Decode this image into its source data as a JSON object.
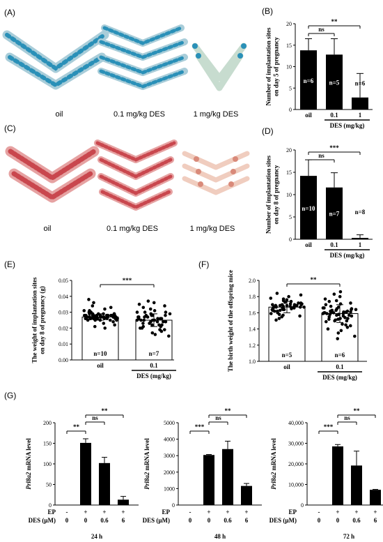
{
  "photos": [
    {
      "letter": "(A)",
      "stain": "blue",
      "labels": [
        "oil",
        "0.1 mg/kg DES",
        "1 mg/kg DES"
      ]
    },
    {
      "letter": "(C)",
      "stain": "red",
      "labels": [
        "oil",
        "0.1 mg/kg DES",
        "1 mg/kg DES"
      ]
    }
  ],
  "colors": {
    "bar_fill": "#000000",
    "blue_stain": "#2a90b8",
    "blue_tissue": "#a9cdd9",
    "red_stain": "#c9474e",
    "red_tissue": "#e6a2a2",
    "pale_tissue": "#f0cdbf",
    "pale_stain": "#d98a7a"
  },
  "chart_data": [
    {
      "id": "B",
      "letter": "(B)",
      "type": "bar",
      "ylabel": [
        "Number of implantation sites",
        "on day 5 of pregnancy"
      ],
      "ylim": [
        0,
        20
      ],
      "yticks": [
        "0",
        "5",
        "10",
        "15",
        "20"
      ],
      "ytick_values": [
        0,
        5,
        10,
        15,
        20
      ],
      "categories": [
        "oil",
        "0.1",
        "1"
      ],
      "values": [
        13.8,
        12.8,
        2.8
      ],
      "errors": [
        2.7,
        3.7,
        5.6
      ],
      "n_labels": [
        "n=6",
        "n=5",
        "n=6"
      ],
      "group_label": "DES (mg/kg)",
      "significance": [
        {
          "from": 0,
          "to": 1,
          "label": "ns"
        },
        {
          "from": 0,
          "to": 2,
          "label": "**"
        }
      ]
    },
    {
      "id": "D",
      "letter": "(D)",
      "type": "bar",
      "ylabel": [
        "Number of implantation sites",
        "on day 8 of pregnancy"
      ],
      "ylim": [
        0,
        20
      ],
      "yticks": [
        "0",
        "5",
        "10",
        "15",
        "20"
      ],
      "ytick_values": [
        0,
        5,
        10,
        15,
        20
      ],
      "categories": [
        "oil",
        "0.1",
        "1"
      ],
      "values": [
        14.2,
        11.6,
        0.3
      ],
      "errors": [
        3.6,
        3.3,
        0.7
      ],
      "n_labels": [
        "n=10",
        "n=7",
        "n=8"
      ],
      "group_label": "DES (mg/kg)",
      "significance": [
        {
          "from": 0,
          "to": 1,
          "label": "ns"
        },
        {
          "from": 0,
          "to": 2,
          "label": "***"
        }
      ]
    },
    {
      "id": "E",
      "letter": "(E)",
      "type": "scatter",
      "ylabel": [
        "The weight of implantation sites",
        "on day 8 of pregnancy (g)"
      ],
      "ylim": [
        0,
        0.05
      ],
      "yticks": [
        "0.00",
        "0.01",
        "0.02",
        "0.03",
        "0.04",
        "0.05"
      ],
      "ytick_values": [
        0,
        0.01,
        0.02,
        0.03,
        0.04,
        0.05
      ],
      "categories": [
        "oil",
        "0.1"
      ],
      "values": [
        0.027,
        0.025
      ],
      "errors": [
        0.002,
        0.004
      ],
      "points": [
        [
          0.027,
          0.028,
          0.026,
          0.027,
          0.029,
          0.025,
          0.027,
          0.028,
          0.026,
          0.03,
          0.027,
          0.026,
          0.028,
          0.027,
          0.025,
          0.029,
          0.027,
          0.028,
          0.026,
          0.027,
          0.031,
          0.024,
          0.027,
          0.028,
          0.026,
          0.029,
          0.027,
          0.025,
          0.028,
          0.027,
          0.026,
          0.03,
          0.027,
          0.028,
          0.026,
          0.027,
          0.032,
          0.023,
          0.027,
          0.028,
          0.026,
          0.029,
          0.027,
          0.025,
          0.028,
          0.027,
          0.026,
          0.031,
          0.027,
          0.028,
          0.026,
          0.027,
          0.033,
          0.022,
          0.027,
          0.028,
          0.026,
          0.029,
          0.027,
          0.025,
          0.034,
          0.036,
          0.038,
          0.021,
          0.02,
          0.028,
          0.026,
          0.029,
          0.027,
          0.028
        ],
        [
          0.025,
          0.028,
          0.022,
          0.026,
          0.03,
          0.02,
          0.024,
          0.027,
          0.031,
          0.019,
          0.025,
          0.029,
          0.023,
          0.026,
          0.033,
          0.018,
          0.024,
          0.028,
          0.021,
          0.027,
          0.035,
          0.016,
          0.025,
          0.03,
          0.022,
          0.026,
          0.036,
          0.017,
          0.024,
          0.029,
          0.023,
          0.027,
          0.034,
          0.019,
          0.025,
          0.028,
          0.021,
          0.026,
          0.037,
          0.015,
          0.024,
          0.03,
          0.022,
          0.027,
          0.032,
          0.02,
          0.025,
          0.028
        ]
      ],
      "n_labels": [
        "n=10",
        "n=7"
      ],
      "group_label": "DES (mg/kg)",
      "significance": [
        {
          "from": 0,
          "to": 1,
          "label": "***"
        }
      ]
    },
    {
      "id": "F",
      "letter": "(F)",
      "type": "scatter",
      "ylabel": [
        "The birth weight of the offspring mice"
      ],
      "ylim": [
        1.0,
        2.0
      ],
      "yticks": [
        "1.0",
        "1.2",
        "1.4",
        "1.6",
        "1.8",
        "2.0"
      ],
      "ytick_values": [
        1.0,
        1.2,
        1.4,
        1.6,
        1.8,
        2.0
      ],
      "categories": [
        "oil",
        "0.1"
      ],
      "values": [
        1.67,
        1.59
      ],
      "errors": [
        0.07,
        0.11
      ],
      "points": [
        [
          1.67,
          1.7,
          1.64,
          1.68,
          1.72,
          1.62,
          1.66,
          1.69,
          1.74,
          1.6,
          1.67,
          1.71,
          1.65,
          1.68,
          1.76,
          1.58,
          1.66,
          1.7,
          1.63,
          1.69,
          1.78,
          1.56,
          1.67,
          1.72,
          1.64,
          1.68,
          1.8,
          1.55,
          1.66,
          1.71,
          1.63,
          1.69,
          1.75,
          1.59,
          1.67,
          1.7,
          1.65,
          1.68,
          1.82,
          1.53,
          1.66,
          1.73,
          1.64,
          1.69,
          1.77,
          1.57,
          1.84,
          1.51,
          1.67,
          1.7,
          1.62,
          1.68
        ],
        [
          1.59,
          1.64,
          1.53,
          1.6,
          1.68,
          1.49,
          1.57,
          1.62,
          1.71,
          1.45,
          1.58,
          1.65,
          1.52,
          1.61,
          1.74,
          1.42,
          1.56,
          1.63,
          1.5,
          1.6,
          1.77,
          1.38,
          1.58,
          1.66,
          1.54,
          1.61,
          1.8,
          1.35,
          1.57,
          1.64,
          1.51,
          1.6,
          1.72,
          1.44,
          1.59,
          1.67,
          1.55,
          1.62,
          1.83,
          1.31,
          1.56,
          1.65,
          1.52,
          1.6,
          1.75,
          1.4,
          1.86,
          1.28,
          1.58,
          1.63,
          1.5,
          1.61,
          1.7,
          1.46,
          1.59,
          1.66,
          1.53,
          1.6
        ]
      ],
      "n_labels": [
        "n=5",
        "n=6"
      ],
      "group_label": "DES (mg/kg)",
      "significance": [
        {
          "from": 0,
          "to": 1,
          "label": "**"
        }
      ]
    }
  ],
  "panel_g": {
    "letter": "(G)",
    "row_labels": [
      "EP",
      "DES (μM)"
    ],
    "ep_marks": [
      "-",
      "+",
      "+",
      "+"
    ],
    "des_marks": [
      "0",
      "0",
      "0.6",
      "6"
    ],
    "ylabel_gene": "Prl8a2",
    "ylabel_rest": " mRNA level",
    "charts": [
      {
        "type": "bar",
        "title": "24 h",
        "ylim": [
          0,
          200
        ],
        "yticks": [
          "0",
          "50",
          "100",
          "150",
          "200"
        ],
        "ytick_values": [
          0,
          50,
          100,
          150,
          200
        ],
        "values": [
          0,
          151,
          102,
          13
        ],
        "errors": [
          0,
          10,
          14,
          8
        ],
        "significance": [
          {
            "from": 0,
            "to": 1,
            "label": "**"
          },
          {
            "from": 1,
            "to": 2,
            "label": "ns"
          },
          {
            "from": 1,
            "to": 3,
            "label": "**"
          }
        ]
      },
      {
        "type": "bar",
        "title": "48 h",
        "ylim": [
          0,
          5000
        ],
        "yticks": [
          "0",
          "1000",
          "2000",
          "3000",
          "4000",
          "5000"
        ],
        "ytick_values": [
          0,
          1000,
          2000,
          3000,
          4000,
          5000
        ],
        "values": [
          0,
          3040,
          3400,
          1160
        ],
        "errors": [
          0,
          30,
          480,
          150
        ],
        "significance": [
          {
            "from": 0,
            "to": 1,
            "label": "***"
          },
          {
            "from": 1,
            "to": 2,
            "label": "ns"
          },
          {
            "from": 1,
            "to": 3,
            "label": "**"
          }
        ]
      },
      {
        "type": "bar",
        "title": "72 h",
        "ylim": [
          0,
          40000
        ],
        "yticks": [
          "0",
          "10,000",
          "20,000",
          "30,000",
          "40,000"
        ],
        "ytick_values": [
          0,
          10000,
          20000,
          30000,
          40000
        ],
        "values": [
          0,
          28500,
          19200,
          7400
        ],
        "errors": [
          0,
          900,
          7000,
          200
        ],
        "significance": [
          {
            "from": 0,
            "to": 1,
            "label": "***"
          },
          {
            "from": 1,
            "to": 2,
            "label": "ns"
          },
          {
            "from": 1,
            "to": 3,
            "label": "**"
          }
        ]
      }
    ]
  }
}
